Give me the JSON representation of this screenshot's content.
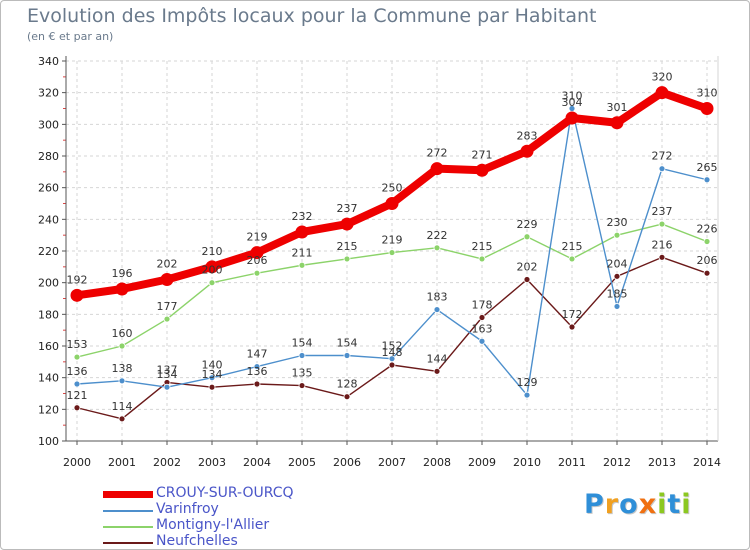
{
  "chart_data": {
    "type": "line",
    "title": "Evolution des Impôts locaux pour la Commune par Habitant",
    "subtitle": "(en € et par an)",
    "xlabel": "",
    "ylabel": "",
    "x": [
      "2000",
      "2001",
      "2002",
      "2003",
      "2004",
      "2005",
      "2006",
      "2007",
      "2008",
      "2009",
      "2010",
      "2011",
      "2012",
      "2013",
      "2014"
    ],
    "ylim": [
      100,
      340
    ],
    "yticks": [
      100,
      120,
      140,
      160,
      180,
      200,
      220,
      240,
      260,
      280,
      300,
      320,
      340
    ],
    "grid": true,
    "series": [
      {
        "name": "CROUY-SUR-OURCQ",
        "color": "#ee0000",
        "values": [
          192,
          196,
          202,
          210,
          219,
          232,
          237,
          250,
          272,
          271,
          283,
          304,
          301,
          320,
          310
        ]
      },
      {
        "name": "Varinfroy",
        "color": "#4d8fcc",
        "values": [
          136,
          138,
          134,
          140,
          147,
          154,
          154,
          152,
          183,
          163,
          129,
          310,
          185,
          272,
          265
        ]
      },
      {
        "name": "Montigny-l'Allier",
        "color": "#8cd36a",
        "values": [
          153,
          160,
          177,
          200,
          206,
          211,
          215,
          219,
          222,
          215,
          229,
          215,
          230,
          237,
          226
        ]
      },
      {
        "name": "Neufchelles",
        "color": "#6b1a1a",
        "values": [
          121,
          114,
          137,
          134,
          136,
          135,
          128,
          148,
          144,
          178,
          202,
          172,
          204,
          216,
          206
        ]
      }
    ]
  },
  "brand": {
    "name": "Proxiti",
    "letters": [
      {
        "ch": "P",
        "color": "#2f8fd8"
      },
      {
        "ch": "r",
        "color": "#f0a020"
      },
      {
        "ch": "o",
        "color": "#2f8fd8"
      },
      {
        "ch": "x",
        "color": "#f07010"
      },
      {
        "ch": "i",
        "color": "#8cc820"
      },
      {
        "ch": "t",
        "color": "#2f8fd8"
      },
      {
        "ch": "i",
        "color": "#8cc820"
      }
    ]
  }
}
